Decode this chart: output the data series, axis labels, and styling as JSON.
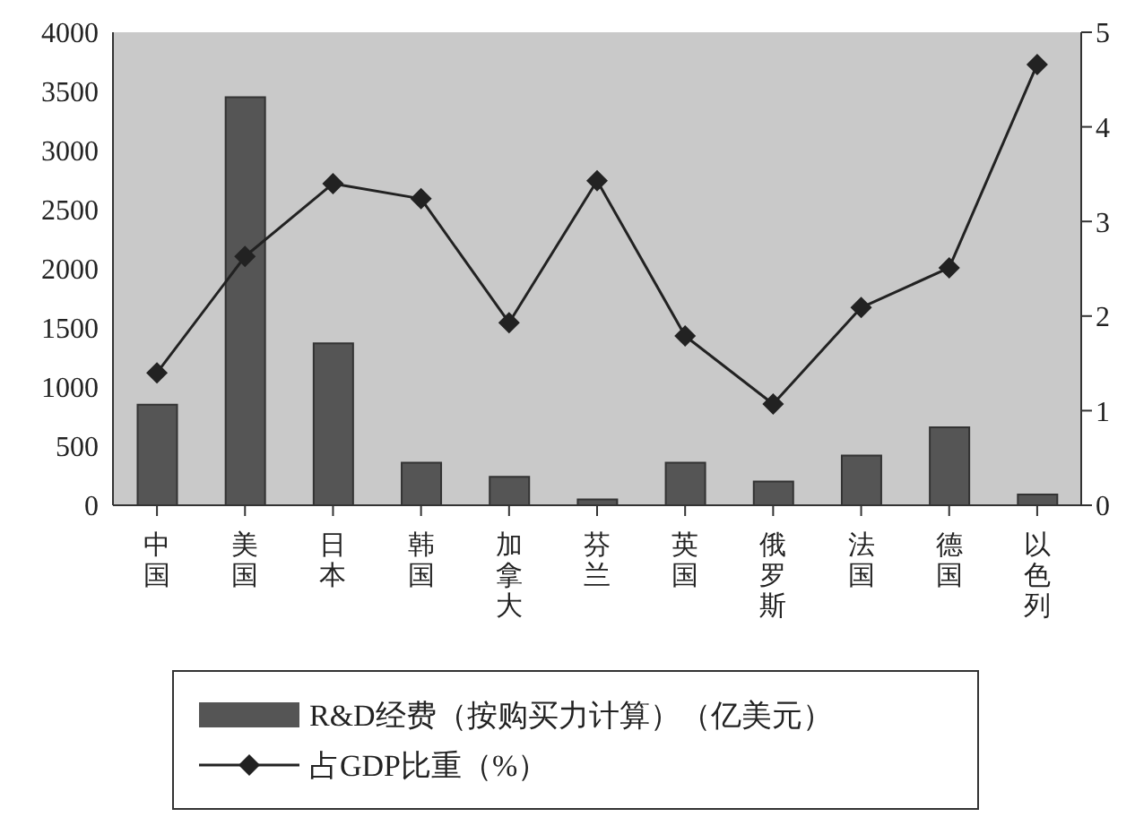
{
  "chart_data": {
    "type": "bar",
    "categories": [
      "中国",
      "美国",
      "日本",
      "韩国",
      "加拿大",
      "芬兰",
      "英国",
      "俄罗斯",
      "法国",
      "德国",
      "以色列"
    ],
    "series": [
      {
        "name": "R&D经费（按购买力计算）（亿美元）",
        "color": "#555555",
        "values": [
          850,
          3450,
          1370,
          360,
          240,
          50,
          360,
          200,
          420,
          660,
          90
        ]
      },
      {
        "name": "占GDP比重（%）",
        "type": "line",
        "axis": "y2",
        "color": "#222222",
        "marker": "diamond",
        "values": [
          1.4,
          2.63,
          3.4,
          3.24,
          1.93,
          3.43,
          1.79,
          1.07,
          2.09,
          2.51,
          4.66
        ]
      }
    ],
    "ylim": [
      0,
      4000
    ],
    "yticks": [
      0,
      500,
      1000,
      1500,
      2000,
      2500,
      3000,
      3500,
      4000
    ],
    "y2lim": [
      0,
      5
    ],
    "y2ticks": [
      0,
      1,
      2,
      3,
      4,
      5
    ],
    "legend": "bottom",
    "grid": false
  }
}
